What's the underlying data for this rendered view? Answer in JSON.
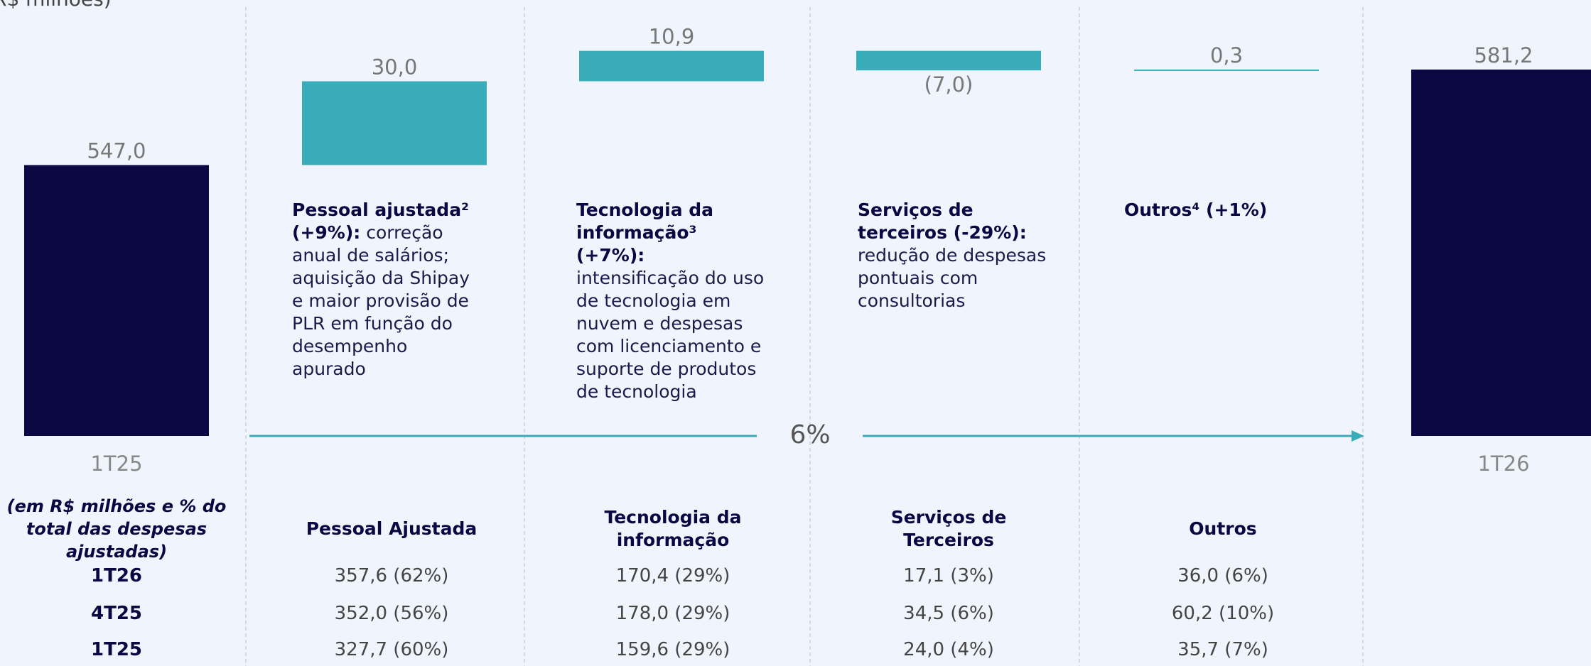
{
  "chart_data": {
    "type": "waterfall",
    "subtitle": "R$ milhões)",
    "categories": [
      "1T25",
      null,
      null,
      null,
      null,
      "1T26"
    ],
    "values": [
      547.0,
      30.0,
      10.9,
      -7.0,
      0.3,
      581.2
    ],
    "value_labels": [
      "547,0",
      "30,0",
      "10,9",
      "(7,0)",
      "0,3",
      "581,2"
    ],
    "is_total": [
      true,
      false,
      false,
      false,
      false,
      true
    ],
    "total_color": "#0b0742",
    "delta_color": "#38adb9",
    "ylim": [
      450,
      600
    ],
    "growth_label": "6%",
    "annotations": [
      {
        "heading": "Pessoal ajustada² (+9%):",
        "body": "correção anual de salários; aquisição da Shipay e maior provisão de PLR em função do desempenho apurado"
      },
      {
        "heading": "Tecnologia da informação³ (+7%):",
        "body": "intensificação do uso de tecnologia em nuvem e despesas com licenciamento e suporte de produtos de tecnologia"
      },
      {
        "heading": "Serviços de terceiros (-29%):",
        "body": "redução de despesas pontuais com consultorias"
      },
      {
        "heading": "Outros⁴ (+1%)",
        "body": ""
      }
    ]
  },
  "table": {
    "corner": "(em R$ milhões e % do total das despesas ajustadas)",
    "columns": [
      "Pessoal Ajustada",
      "Tecnologia da informação",
      "Serviços de Terceiros",
      "Outros"
    ],
    "rows": [
      {
        "label": "1T26",
        "cells": [
          "357,6 (62%)",
          "170,4 (29%)",
          "17,1 (3%)",
          "36,0 (6%)"
        ]
      },
      {
        "label": "4T25",
        "cells": [
          "352,0 (56%)",
          "178,0 (29%)",
          "34,5 (6%)",
          "60,2 (10%)"
        ]
      },
      {
        "label": "1T25",
        "cells": [
          "327,7 (60%)",
          "159,6 (29%)",
          "24,0 (4%)",
          "35,7 (7%)"
        ]
      }
    ]
  }
}
